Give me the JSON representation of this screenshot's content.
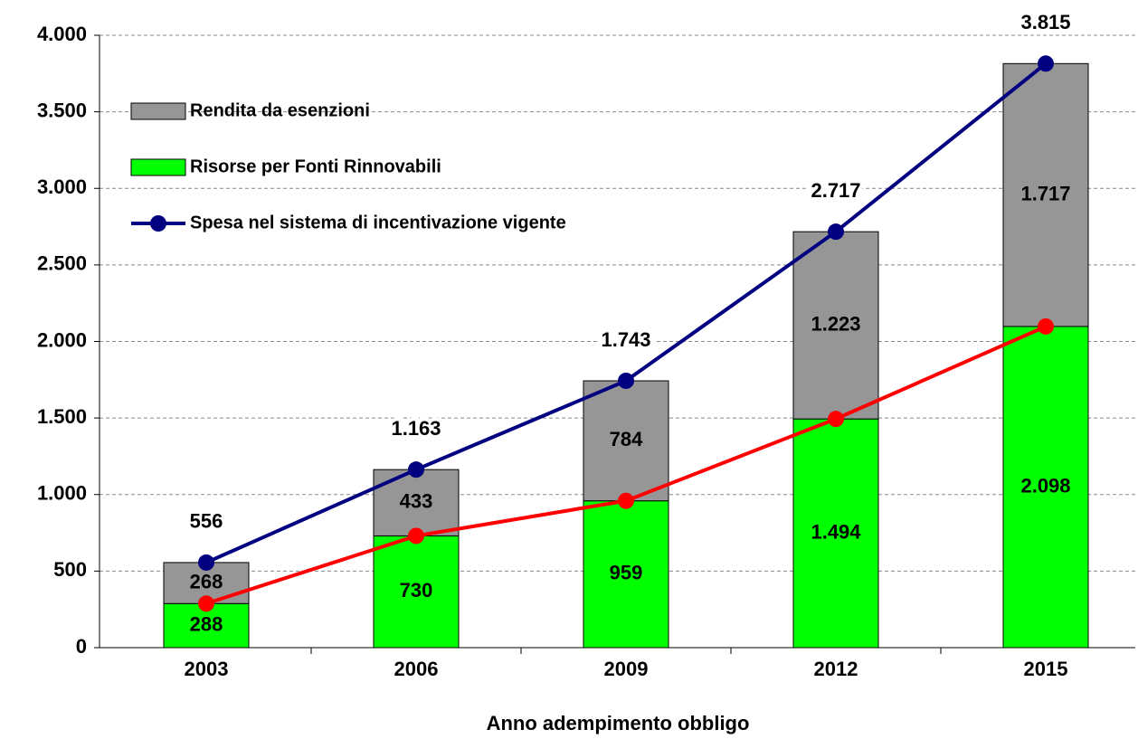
{
  "chart_data": {
    "type": "bar",
    "stacked": true,
    "x_label": "Anno adempimento obbligo",
    "categories": [
      "2003",
      "2006",
      "2009",
      "2012",
      "2015"
    ],
    "series": [
      {
        "name": "Risorse per Fonti Rinnovabili",
        "type": "bar",
        "color": "#00ff00",
        "values": [
          288,
          730,
          959,
          1494,
          2098
        ],
        "value_labels": [
          "288",
          "730",
          "959",
          "1.494",
          "2.098"
        ]
      },
      {
        "name": "Rendita da esenzioni",
        "type": "bar",
        "color": "#969696",
        "values": [
          268,
          433,
          784,
          1223,
          1717
        ],
        "value_labels": [
          "268",
          "433",
          "784",
          "1.223",
          "1.717"
        ]
      },
      {
        "name": "Spesa nel sistema di incentivazione vigente",
        "type": "line",
        "color": "#000080",
        "values": [
          556,
          1163,
          1743,
          2717,
          3815
        ],
        "value_labels": [
          "556",
          "1.163",
          "1.743",
          "2.717",
          "3.815"
        ]
      },
      {
        "type": "line",
        "color": "#ff0000",
        "values": [
          288,
          730,
          959,
          1494,
          2098
        ]
      }
    ],
    "legend_order": [
      1,
      0,
      2
    ],
    "legend": "upper left",
    "ylim": [
      0,
      4000
    ],
    "yticks": [
      0,
      500,
      {
        "value": 1000,
        "label": "1.000"
      },
      {
        "value": 1500,
        "label": "1.500"
      },
      {
        "value": 2000,
        "label": "2.000"
      },
      {
        "value": 2500,
        "label": "2.500"
      },
      {
        "value": 3000,
        "label": "3.000"
      },
      {
        "value": 3500,
        "label": "3.500"
      },
      {
        "value": 4000,
        "label": "4.000"
      }
    ],
    "grid": true
  }
}
